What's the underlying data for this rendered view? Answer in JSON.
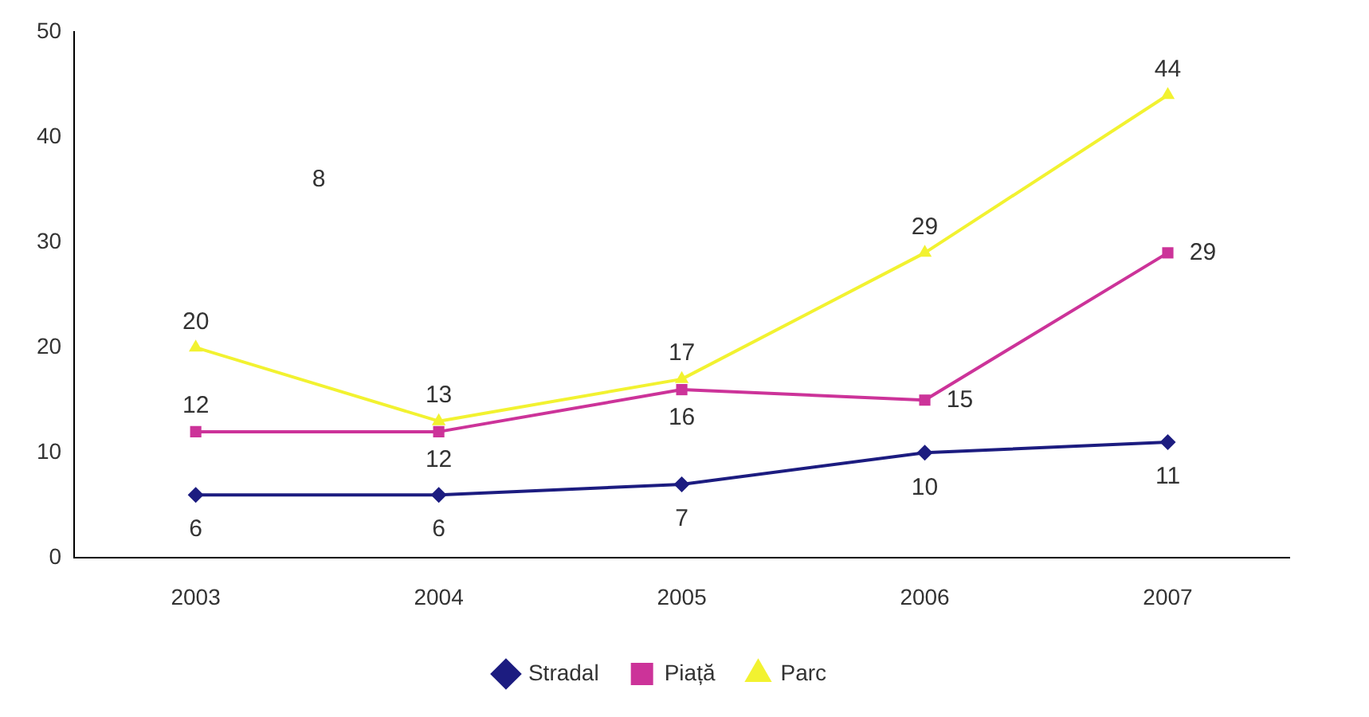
{
  "chart_data": {
    "type": "line",
    "categories": [
      "2003",
      "2004",
      "2005",
      "2006",
      "2007"
    ],
    "series": [
      {
        "name": "Stradal",
        "color": "#1c1c80",
        "values": [
          6,
          6,
          7,
          10,
          11
        ],
        "marker": "diamond"
      },
      {
        "name": "Piață",
        "color": "#cc3399",
        "values": [
          12,
          12,
          16,
          15,
          29
        ],
        "marker": "square"
      },
      {
        "name": "Parc",
        "color": "#f2f230",
        "values": [
          20,
          13,
          17,
          29,
          44
        ],
        "marker": "triangle"
      }
    ],
    "ylim": [
      0,
      50
    ],
    "yticks": [
      0,
      10,
      20,
      30,
      40,
      50
    ],
    "grid": false,
    "legend": "bottom",
    "data_labels": true,
    "line_style": "solid",
    "annotations": [
      "8"
    ]
  }
}
